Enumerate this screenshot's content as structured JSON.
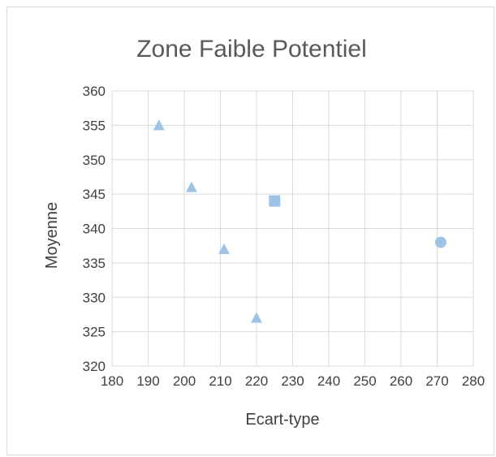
{
  "chart_data": {
    "type": "scatter",
    "title": "Zone Faible Potentiel",
    "xlabel": "Ecart-type",
    "ylabel": "Moyenne",
    "xlim": [
      180,
      280
    ],
    "ylim": [
      320,
      360
    ],
    "x_ticks": [
      "180",
      "190",
      "200",
      "210",
      "220",
      "230",
      "240",
      "250",
      "260",
      "270",
      "280"
    ],
    "y_ticks": [
      "320",
      "325",
      "330",
      "335",
      "340",
      "345",
      "350",
      "355",
      "360"
    ],
    "grid": true,
    "legend": "none",
    "colors": {
      "marker": "#9dc3e6",
      "grid": "#d9d9d9",
      "text": "#404040",
      "title": "#595959"
    },
    "series": [
      {
        "marker": "triangle",
        "points": [
          [
            193,
            355
          ],
          [
            202,
            346
          ],
          [
            211,
            337
          ],
          [
            220,
            327
          ]
        ]
      },
      {
        "marker": "square",
        "points": [
          [
            225,
            344
          ]
        ]
      },
      {
        "marker": "circle",
        "points": [
          [
            271,
            338
          ]
        ]
      }
    ]
  }
}
